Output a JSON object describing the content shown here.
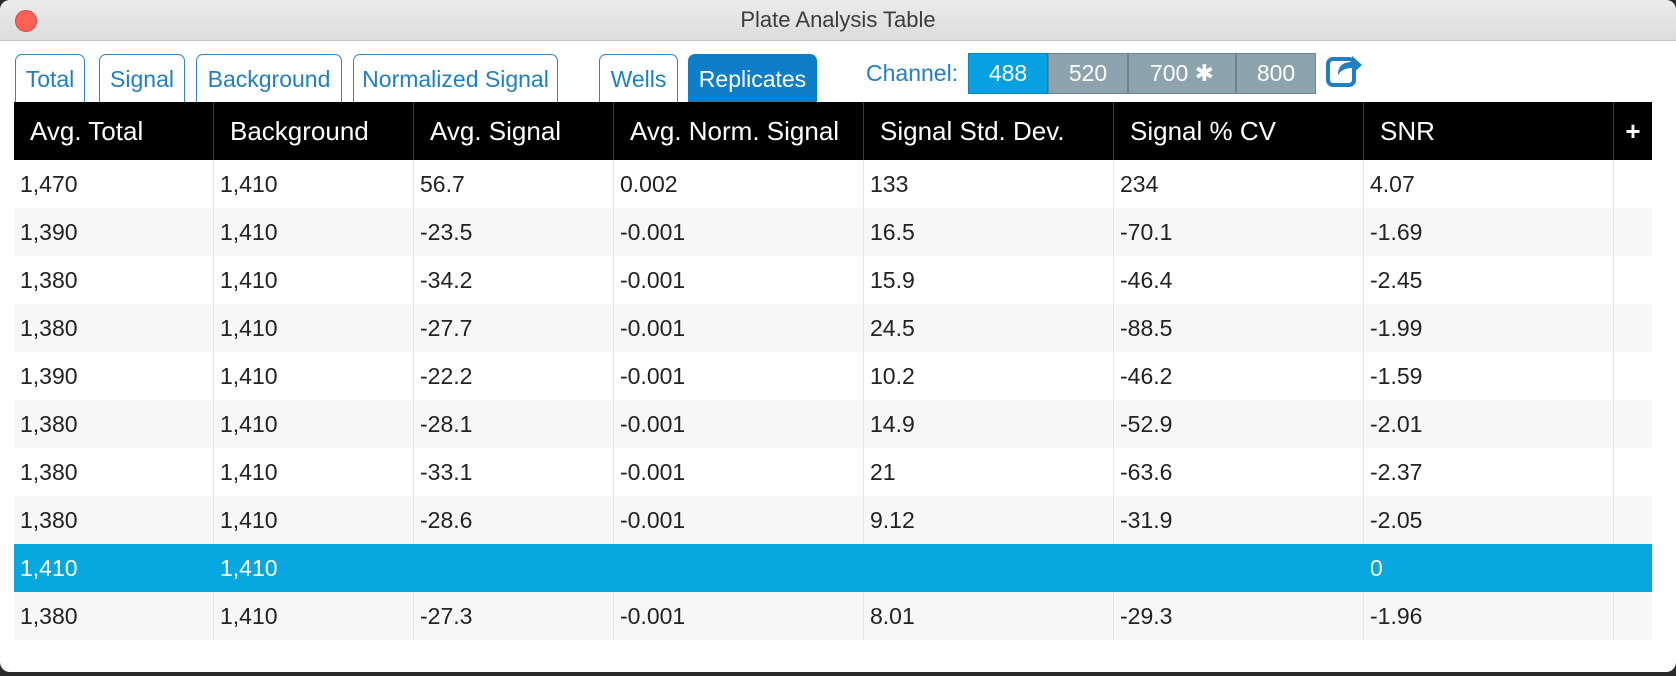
{
  "window": {
    "title": "Plate Analysis Table"
  },
  "tabs": [
    {
      "label": "Total",
      "active": false
    },
    {
      "label": "Signal",
      "active": false
    },
    {
      "label": "Background",
      "active": false
    },
    {
      "label": "Normalized Signal",
      "active": false
    },
    {
      "label": "Wells",
      "active": false
    },
    {
      "label": "Replicates",
      "active": true
    }
  ],
  "channel": {
    "label": "Channel:",
    "options": [
      {
        "label": "488",
        "active": true
      },
      {
        "label": "520",
        "active": false
      },
      {
        "label": "700 ✱",
        "active": false
      },
      {
        "label": "800",
        "active": false
      }
    ]
  },
  "table": {
    "columns": [
      "Avg. Total",
      "Background",
      "Avg. Signal",
      "Avg. Norm. Signal",
      "Signal Std. Dev.",
      "Signal % CV",
      "SNR",
      "+"
    ],
    "selected_row": 8,
    "rows": [
      [
        "1,470",
        "1,410",
        "56.7",
        "0.002",
        "133",
        "234",
        "4.07"
      ],
      [
        "1,390",
        "1,410",
        "-23.5",
        "-0.001",
        "16.5",
        "-70.1",
        "-1.69"
      ],
      [
        "1,380",
        "1,410",
        "-34.2",
        "-0.001",
        "15.9",
        "-46.4",
        "-2.45"
      ],
      [
        "1,380",
        "1,410",
        "-27.7",
        "-0.001",
        "24.5",
        "-88.5",
        "-1.99"
      ],
      [
        "1,390",
        "1,410",
        "-22.2",
        "-0.001",
        "10.2",
        "-46.2",
        "-1.59"
      ],
      [
        "1,380",
        "1,410",
        "-28.1",
        "-0.001",
        "14.9",
        "-52.9",
        "-2.01"
      ],
      [
        "1,380",
        "1,410",
        "-33.1",
        "-0.001",
        "21",
        "-63.6",
        "-2.37"
      ],
      [
        "1,380",
        "1,410",
        "-28.6",
        "-0.001",
        "9.12",
        "-31.9",
        "-2.05"
      ],
      [
        "1,410",
        "1,410",
        "",
        "",
        "",
        "",
        "0"
      ],
      [
        "1,380",
        "1,410",
        "-27.3",
        "-0.001",
        "8.01",
        "-29.3",
        "-1.96"
      ]
    ]
  },
  "colors": {
    "accent": "#0d7ec7",
    "selection": "#07a8e0",
    "channel_active": "#07a1e2",
    "channel_inactive": "#8da3ad"
  },
  "icons": {
    "close": "close-icon",
    "export": "export-icon"
  }
}
